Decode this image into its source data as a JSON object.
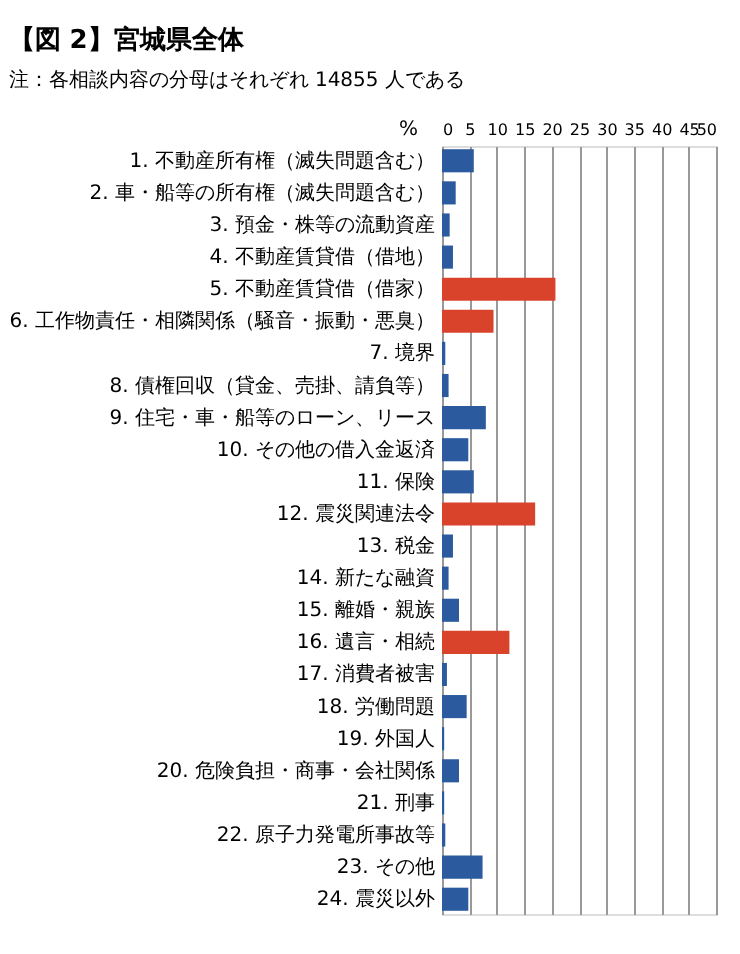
{
  "chart_data": {
    "type": "bar",
    "orientation": "horizontal",
    "title": "【図 2】宮城県全体",
    "annotations": [
      "注：各相談内容の分母はそれぞれ 14855 人である"
    ],
    "xlabel": "%",
    "categories": [
      "1. 不動産所有権（滅失問題含む）",
      "2. 車・船等の所有権（滅失問題含む）",
      "3. 預金・株等の流動資産",
      "4. 不動産賃貸借（借地）",
      "5. 不動産賃貸借（借家）",
      "6. 工作物責任・相隣関係（騒音・振動・悪臭）",
      "7. 境界",
      "8. 債権回収（貸金、売掛、請負等）",
      "9. 住宅・車・船等のローン、リース",
      "10. その他の借入金返済",
      "11. 保険",
      "12. 震災関連法令",
      "13. 税金",
      "14. 新たな融資",
      "15. 離婚・親族",
      "16. 遺言・相続",
      "17. 消費者被害",
      "18. 労働問題",
      "19. 外国人",
      "20. 危険負担・商事・会社関係",
      "21. 刑事",
      "22. 原子力発電所事故等",
      "23. その他",
      "24. 震災以外"
    ],
    "values": [
      5.8,
      2.5,
      1.4,
      2.0,
      20.7,
      9.4,
      0.6,
      1.2,
      8.0,
      4.8,
      5.8,
      17.0,
      2.0,
      1.2,
      3.1,
      12.3,
      0.9,
      4.5,
      0.4,
      3.1,
      0.4,
      0.6,
      7.4,
      4.8
    ],
    "colors": [
      "#2b5a9e",
      "#2b5a9e",
      "#2b5a9e",
      "#2b5a9e",
      "#d9432c",
      "#d9432c",
      "#2b5a9e",
      "#2b5a9e",
      "#2b5a9e",
      "#2b5a9e",
      "#2b5a9e",
      "#d9432c",
      "#2b5a9e",
      "#2b5a9e",
      "#2b5a9e",
      "#d9432c",
      "#2b5a9e",
      "#2b5a9e",
      "#2b5a9e",
      "#2b5a9e",
      "#2b5a9e",
      "#2b5a9e",
      "#2b5a9e",
      "#2b5a9e"
    ],
    "xlim": [
      0,
      50
    ],
    "xticks": [
      0,
      5,
      10,
      15,
      20,
      25,
      30,
      35,
      40,
      45,
      50
    ],
    "grid": "x",
    "legend": false
  }
}
